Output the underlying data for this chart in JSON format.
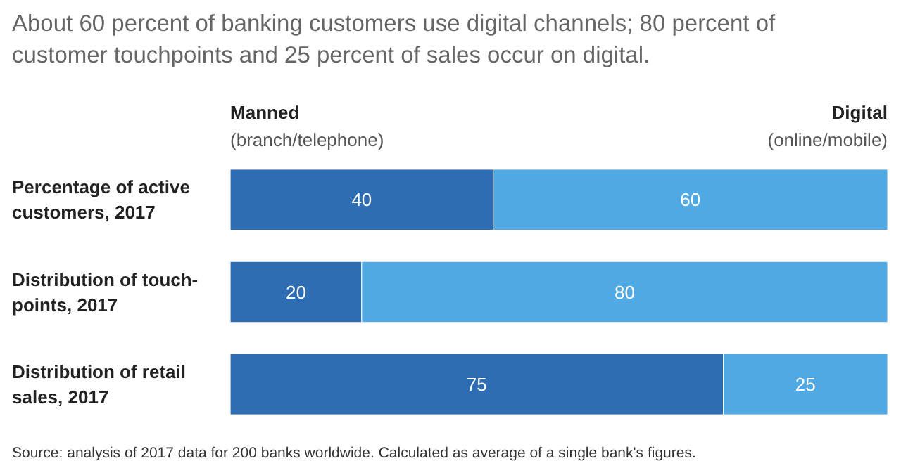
{
  "chart_data": {
    "type": "bar",
    "orientation": "horizontal",
    "stacked": true,
    "data_labels": true,
    "legend": "top",
    "title": "About 60 percent of banking customers use digital channels; 80 percent of customer touchpoints and 25 percent of sales occur on digital.",
    "categories": [
      "Percentage of active\ncustomers, 2017",
      "Distribution of touch-\npoints, 2017",
      "Distribution of retail\nsales, 2017"
    ],
    "series": [
      {
        "name": "Manned\n(branch/telephone)",
        "color": "#2e6db4",
        "values": [
          40,
          20,
          75
        ]
      },
      {
        "name": "Digital\n(online/mobile)",
        "color": "#50a9e2",
        "values": [
          60,
          80,
          25
        ]
      }
    ],
    "annotations": [
      "Source: analysis of 2017 data for 200 banks worldwide. Calculated as average of a single bank's figures."
    ]
  }
}
